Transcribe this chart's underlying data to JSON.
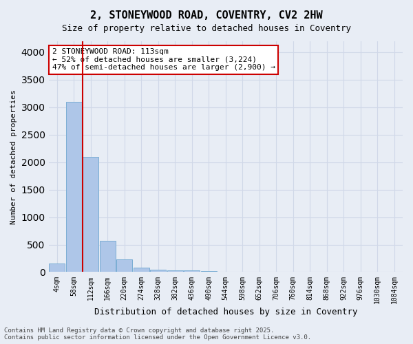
{
  "title_line1": "2, STONEYWOOD ROAD, COVENTRY, CV2 2HW",
  "title_line2": "Size of property relative to detached houses in Coventry",
  "xlabel": "Distribution of detached houses by size in Coventry",
  "ylabel": "Number of detached properties",
  "bins": [
    "4sqm",
    "58sqm",
    "112sqm",
    "166sqm",
    "220sqm",
    "274sqm",
    "328sqm",
    "382sqm",
    "436sqm",
    "490sqm",
    "544sqm",
    "598sqm",
    "652sqm",
    "706sqm",
    "760sqm",
    "814sqm",
    "868sqm",
    "922sqm",
    "976sqm",
    "1030sqm",
    "1084sqm"
  ],
  "bar_heights": [
    150,
    3100,
    2100,
    570,
    230,
    80,
    40,
    30,
    25,
    20,
    5,
    3,
    2,
    2,
    1,
    1,
    1,
    1,
    0,
    0,
    0
  ],
  "bar_color": "#aec6e8",
  "bar_edge_color": "#7aadd4",
  "grid_color": "#d0d8e8",
  "vline_color": "#cc0000",
  "vline_bin": 2,
  "annotation_text": "2 STONEYWOOD ROAD: 113sqm\n← 52% of detached houses are smaller (3,224)\n47% of semi-detached houses are larger (2,900) →",
  "annotation_box_color": "#ffffff",
  "annotation_box_edge": "#cc0000",
  "ylim": [
    0,
    4200
  ],
  "yticks": [
    0,
    500,
    1000,
    1500,
    2000,
    2500,
    3000,
    3500,
    4000
  ],
  "footer_line1": "Contains HM Land Registry data © Crown copyright and database right 2025.",
  "footer_line2": "Contains public sector information licensed under the Open Government Licence v3.0.",
  "bg_color": "#e8edf5"
}
